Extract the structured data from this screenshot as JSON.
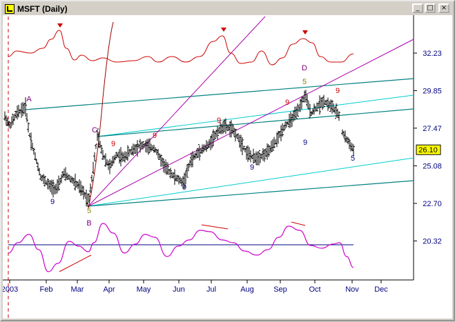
{
  "window": {
    "title": "MSFT (Daily)",
    "buttons": {
      "minimize": "_",
      "maximize": "□",
      "close": "×"
    }
  },
  "chart_data": {
    "type": "bar",
    "price_axis": {
      "ticks": [
        "32.23",
        "29.85",
        "27.47",
        "25.08",
        "22.70",
        "20.32"
      ],
      "current_price": "26.10"
    },
    "x_axis": {
      "labels": [
        "2003",
        "Feb",
        "Mar",
        "Apr",
        "May",
        "Jun",
        "Jul",
        "Aug",
        "Sep",
        "Oct",
        "Nov",
        "Dec"
      ]
    },
    "wave_labels": [
      {
        "text": "A"
      },
      {
        "text": "B"
      },
      {
        "text": "C"
      },
      {
        "text": "D"
      },
      {
        "text": "5"
      },
      {
        "text": "5"
      },
      {
        "text": "5"
      }
    ],
    "count_labels": [
      {
        "text": "9"
      },
      {
        "text": "9"
      },
      {
        "text": "9"
      },
      {
        "text": "9"
      },
      {
        "text": "9"
      },
      {
        "text": "9"
      },
      {
        "text": "9"
      },
      {
        "text": "9"
      },
      {
        "text": "9"
      }
    ],
    "colors": {
      "background": "#ffffff",
      "price_bars": "#000000",
      "cycle_line": "#cc0000",
      "oscillator": "#cc00cc",
      "channel_dark": "#008080",
      "channel_light": "#00cccc",
      "fan_lines": "#aa00aa",
      "axis_text": "#000080",
      "price_tag_bg": "#ffff00"
    }
  }
}
